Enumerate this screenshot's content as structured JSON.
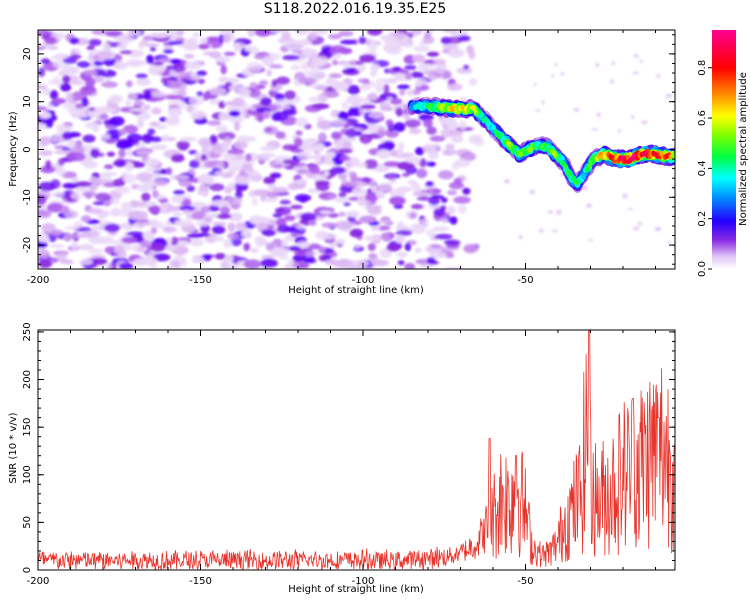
{
  "title": "S118.2022.016.19.35.E25",
  "colors": {
    "snr_line": "#e8332b",
    "axes": "#000000",
    "colormap": [
      "#ffffff",
      "#e3c8f5",
      "#c07cf0",
      "#8a2be2",
      "#4b00ff",
      "#0000ff",
      "#00a0ff",
      "#00ffff",
      "#00ff60",
      "#00ff00",
      "#b0ff00",
      "#ffff00",
      "#ffa500",
      "#ff0000",
      "#ff00a0"
    ]
  },
  "chart_data": [
    {
      "type": "heatmap",
      "title": "S118.2022.016.19.35.E25",
      "xlabel": "Height of straight line (km)",
      "ylabel": "Frequency (Hz)",
      "colorbar_label": "Normalized spectral amplitude",
      "xlim": [
        -200,
        -4
      ],
      "ylim": [
        -25,
        25
      ],
      "clim": [
        0,
        0.95
      ],
      "x_ticks": [
        "-200",
        "-150",
        "-100",
        "-50"
      ],
      "y_ticks": [
        "20",
        "10",
        "0",
        "-10",
        "-20"
      ],
      "colorbar_ticks": [
        "0.0",
        "0.2",
        "0.4",
        "0.6",
        "0.8"
      ],
      "colormap": "white-purple-blue-cyan-green-yellow-red-magenta",
      "background_noise": {
        "x_range": [
          -200,
          -64
        ],
        "amplitude_range": [
          0.0,
          0.18
        ]
      },
      "signal_track": {
        "x": [
          -85,
          -78,
          -72,
          -66,
          -62,
          -58,
          -55,
          -52,
          -49,
          -46,
          -43,
          -41,
          -38,
          -36,
          -34,
          -32,
          -29,
          -26,
          -22,
          -18,
          -14,
          -10,
          -6,
          -4
        ],
        "freq_hz": [
          9,
          9,
          8.5,
          8.5,
          6,
          3,
          1,
          -1,
          0,
          1,
          0.5,
          -1,
          -3,
          -6,
          -7,
          -5,
          -2,
          -1,
          -2,
          -2,
          -1,
          -1,
          -1.5,
          -1.5
        ],
        "peak_amplitude": [
          0.3,
          0.45,
          0.6,
          0.55,
          0.35,
          0.4,
          0.5,
          0.45,
          0.5,
          0.4,
          0.45,
          0.5,
          0.4,
          0.45,
          0.4,
          0.35,
          0.5,
          0.65,
          0.75,
          0.85,
          0.8,
          0.75,
          0.7,
          0.55
        ]
      }
    },
    {
      "type": "line",
      "xlabel": "Height of straight line (km)",
      "ylabel": "SNR (10 * v/v)",
      "xlim": [
        -200,
        -4
      ],
      "ylim": [
        0,
        252
      ],
      "x_ticks": [
        "-200",
        "-150",
        "-100",
        "-50"
      ],
      "y_ticks": [
        "0",
        "50",
        "100",
        "150",
        "200",
        "250"
      ],
      "series": [
        {
          "x": [
            -200,
            -190,
            -180,
            -170,
            -160,
            -150,
            -140,
            -130,
            -120,
            -110,
            -100,
            -90,
            -80,
            -75,
            -70,
            -65,
            -62,
            -60,
            -57,
            -55,
            -53,
            -50,
            -48,
            -45,
            -42,
            -40,
            -38,
            -35,
            -33,
            -31,
            -30,
            -28,
            -25,
            -22,
            -20,
            -18,
            -15,
            -12,
            -10,
            -8,
            -6,
            -4
          ],
          "y": [
            10,
            10,
            10,
            10,
            10,
            10,
            10,
            10,
            10,
            10,
            10,
            10,
            12,
            14,
            18,
            28,
            45,
            55,
            80,
            70,
            90,
            60,
            25,
            15,
            20,
            30,
            50,
            65,
            80,
            150,
            95,
            70,
            80,
            90,
            100,
            105,
            110,
            120,
            125,
            130,
            120,
            115
          ]
        }
      ],
      "peaks": [
        {
          "x": -30.5,
          "y": 252
        },
        {
          "x": -61,
          "y": 138
        },
        {
          "x": -53,
          "y": 120
        },
        {
          "x": -17,
          "y": 180
        },
        {
          "x": -9,
          "y": 160
        }
      ]
    }
  ]
}
